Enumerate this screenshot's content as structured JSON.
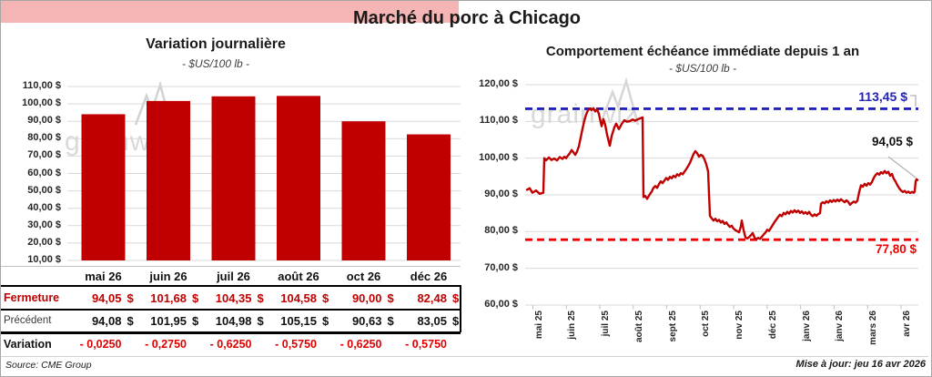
{
  "page": {
    "title": "Marché du porc à Chicago",
    "source_note": "Source: CME Group",
    "updated_note": "Mise à jour: jeu 16 avr 2026",
    "watermark": "grainwiz"
  },
  "colors": {
    "bar": "#c00000",
    "line": "#c00000",
    "high_line": "#2222b8",
    "low_line": "#ee0000",
    "close_row_bg": "#f5b5b5",
    "grid": "#d9d9d9"
  },
  "chart_data": [
    {
      "id": "daily-variation",
      "type": "bar",
      "title": "Variation journalière",
      "subtitle": "- $US/100 lb -",
      "categories": [
        "mai 26",
        "juin 26",
        "juil 26",
        "août 26",
        "oct 26",
        "déc 26"
      ],
      "values": [
        94.05,
        101.68,
        104.35,
        104.58,
        90.0,
        82.48
      ],
      "ylim": [
        10,
        110
      ],
      "ytick_step": 10,
      "ytick_labels": [
        "110,00 $",
        "100,00 $",
        "90,00 $",
        "80,00 $",
        "70,00 $",
        "60,00 $",
        "50,00 $",
        "40,00 $",
        "30,00 $",
        "20,00 $",
        "10,00 $"
      ],
      "grid": true,
      "legend": "none"
    },
    {
      "id": "front-month-one-year",
      "type": "line",
      "title": "Comportement échéance immédiate depuis 1 an",
      "subtitle": "- $US/100 lb -",
      "x_labels": [
        "mai 25",
        "juin 25",
        "juil 25",
        "août 25",
        "sept 25",
        "oct 25",
        "nov 25",
        "déc 25",
        "janv 26",
        "janv 26",
        "mars 26",
        "avr 26"
      ],
      "ylim": [
        60,
        120
      ],
      "ytick_step": 10,
      "ytick_labels": [
        "120,00 $",
        "110,00 $",
        "100,00 $",
        "90,00 $",
        "80,00 $",
        "70,00 $",
        "60,00 $"
      ],
      "grid": true,
      "legend": "none",
      "high_line": {
        "value": 113.45,
        "label": "113,45 $"
      },
      "low_line": {
        "value": 77.8,
        "label": "77,80 $"
      },
      "last_label": {
        "value": 94.05,
        "label": "94,05 $"
      },
      "points": [
        [
          2,
          91.4
        ],
        [
          5,
          91.8
        ],
        [
          8,
          90.6
        ],
        [
          12,
          91.2
        ],
        [
          16,
          90.3
        ],
        [
          20,
          90.6
        ],
        [
          21,
          100.0
        ],
        [
          23,
          99.4
        ],
        [
          26,
          100.2
        ],
        [
          29,
          99.5
        ],
        [
          32,
          99.9
        ],
        [
          35,
          99.4
        ],
        [
          38,
          100.3
        ],
        [
          41,
          99.8
        ],
        [
          43,
          100.4
        ],
        [
          45,
          100.0
        ],
        [
          47,
          100.7
        ],
        [
          49,
          101.3
        ],
        [
          51,
          102.2
        ],
        [
          53,
          101.6
        ],
        [
          55,
          100.9
        ],
        [
          57,
          101.8
        ],
        [
          59,
          103.2
        ],
        [
          61,
          105.6
        ],
        [
          63,
          108.0
        ],
        [
          65,
          110.2
        ],
        [
          67,
          111.9
        ],
        [
          69,
          113.0
        ],
        [
          71,
          113.5
        ],
        [
          73,
          113.1
        ],
        [
          75,
          113.6
        ],
        [
          77,
          112.7
        ],
        [
          79,
          113.3
        ],
        [
          81,
          112.1
        ],
        [
          82,
          110.9
        ],
        [
          84,
          108.7
        ],
        [
          86,
          110.6
        ],
        [
          88,
          109.0
        ],
        [
          90,
          106.4
        ],
        [
          92,
          104.3
        ],
        [
          93,
          103.4
        ],
        [
          95,
          106.0
        ],
        [
          98,
          108.4
        ],
        [
          100,
          109.4
        ],
        [
          103,
          107.9
        ],
        [
          106,
          109.3
        ],
        [
          109,
          110.3
        ],
        [
          112,
          109.9
        ],
        [
          115,
          110.1
        ],
        [
          118,
          110.5
        ],
        [
          121,
          110.2
        ],
        [
          124,
          110.6
        ],
        [
          127,
          110.9
        ],
        [
          129,
          111.1
        ],
        [
          130,
          89.4
        ],
        [
          132,
          89.7
        ],
        [
          134,
          88.9
        ],
        [
          136,
          89.8
        ],
        [
          139,
          90.9
        ],
        [
          141,
          91.9
        ],
        [
          143,
          92.4
        ],
        [
          145,
          91.9
        ],
        [
          147,
          92.9
        ],
        [
          149,
          93.7
        ],
        [
          151,
          93.2
        ],
        [
          153,
          93.9
        ],
        [
          155,
          94.6
        ],
        [
          157,
          94.1
        ],
        [
          159,
          94.9
        ],
        [
          161,
          94.5
        ],
        [
          163,
          95.2
        ],
        [
          165,
          94.8
        ],
        [
          167,
          95.6
        ],
        [
          169,
          95.2
        ],
        [
          171,
          95.9
        ],
        [
          173,
          95.6
        ],
        [
          175,
          96.3
        ],
        [
          177,
          97.0
        ],
        [
          179,
          97.8
        ],
        [
          181,
          98.7
        ],
        [
          183,
          99.9
        ],
        [
          185,
          101.1
        ],
        [
          187,
          101.9
        ],
        [
          189,
          101.3
        ],
        [
          191,
          100.4
        ],
        [
          193,
          100.9
        ],
        [
          195,
          100.6
        ],
        [
          197,
          99.7
        ],
        [
          199,
          98.3
        ],
        [
          201,
          96.4
        ],
        [
          203,
          84.3
        ],
        [
          205,
          83.6
        ],
        [
          207,
          83.0
        ],
        [
          209,
          83.5
        ],
        [
          211,
          82.8
        ],
        [
          213,
          83.2
        ],
        [
          215,
          82.5
        ],
        [
          217,
          82.9
        ],
        [
          219,
          82.1
        ],
        [
          221,
          82.5
        ],
        [
          223,
          81.8
        ],
        [
          225,
          81.3
        ],
        [
          227,
          81.6
        ],
        [
          229,
          80.8
        ],
        [
          231,
          80.4
        ],
        [
          233,
          80.1
        ],
        [
          235,
          79.8
        ],
        [
          237,
          81.4
        ],
        [
          238,
          83.0
        ],
        [
          240,
          80.4
        ],
        [
          242,
          78.5
        ],
        [
          244,
          78.1
        ],
        [
          246,
          78.5
        ],
        [
          248,
          79.0
        ],
        [
          250,
          79.6
        ],
        [
          252,
          78.4
        ],
        [
          254,
          77.9
        ],
        [
          256,
          78.3
        ],
        [
          258,
          78.0
        ],
        [
          260,
          78.6
        ],
        [
          262,
          79.2
        ],
        [
          264,
          79.7
        ],
        [
          266,
          80.5
        ],
        [
          268,
          80.2
        ],
        [
          270,
          81.0
        ],
        [
          272,
          81.8
        ],
        [
          274,
          82.6
        ],
        [
          276,
          83.3
        ],
        [
          278,
          84.0
        ],
        [
          280,
          84.6
        ],
        [
          282,
          84.2
        ],
        [
          284,
          85.1
        ],
        [
          286,
          84.7
        ],
        [
          288,
          85.4
        ],
        [
          290,
          84.9
        ],
        [
          292,
          85.6
        ],
        [
          294,
          85.2
        ],
        [
          296,
          85.8
        ],
        [
          298,
          85.3
        ],
        [
          300,
          85.7
        ],
        [
          302,
          85.1
        ],
        [
          304,
          85.5
        ],
        [
          306,
          84.9
        ],
        [
          308,
          85.3
        ],
        [
          310,
          84.8
        ],
        [
          312,
          85.4
        ],
        [
          314,
          84.6
        ],
        [
          316,
          84.2
        ],
        [
          318,
          84.7
        ],
        [
          320,
          84.3
        ],
        [
          322,
          84.8
        ],
        [
          324,
          85.0
        ],
        [
          325,
          87.6
        ],
        [
          327,
          88.0
        ],
        [
          329,
          87.7
        ],
        [
          331,
          88.3
        ],
        [
          333,
          87.9
        ],
        [
          335,
          88.5
        ],
        [
          337,
          88.1
        ],
        [
          339,
          88.6
        ],
        [
          341,
          88.2
        ],
        [
          343,
          88.7
        ],
        [
          345,
          88.3
        ],
        [
          347,
          88.8
        ],
        [
          349,
          88.4
        ],
        [
          351,
          88.0
        ],
        [
          353,
          88.5
        ],
        [
          355,
          88.1
        ],
        [
          357,
          87.3
        ],
        [
          359,
          87.8
        ],
        [
          361,
          88.2
        ],
        [
          363,
          87.9
        ],
        [
          365,
          88.4
        ],
        [
          367,
          90.8
        ],
        [
          369,
          92.6
        ],
        [
          371,
          92.2
        ],
        [
          373,
          93.0
        ],
        [
          375,
          92.5
        ],
        [
          377,
          93.2
        ],
        [
          379,
          92.8
        ],
        [
          381,
          93.5
        ],
        [
          383,
          94.6
        ],
        [
          385,
          95.4
        ],
        [
          387,
          95.9
        ],
        [
          389,
          95.5
        ],
        [
          391,
          96.2
        ],
        [
          393,
          95.8
        ],
        [
          395,
          96.5
        ],
        [
          397,
          95.9
        ],
        [
          399,
          96.3
        ],
        [
          401,
          95.2
        ],
        [
          403,
          95.7
        ],
        [
          405,
          94.4
        ],
        [
          407,
          93.6
        ],
        [
          409,
          92.6
        ],
        [
          411,
          91.8
        ],
        [
          413,
          91.2
        ],
        [
          415,
          90.8
        ],
        [
          417,
          91.1
        ],
        [
          419,
          90.6
        ],
        [
          421,
          90.9
        ],
        [
          423,
          90.5
        ],
        [
          425,
          90.8
        ],
        [
          427,
          90.6
        ],
        [
          428,
          90.9
        ],
        [
          429,
          93.6
        ],
        [
          430,
          94.3
        ],
        [
          431,
          94.05
        ]
      ]
    }
  ],
  "table": {
    "columns": [
      "mai 26",
      "juin 26",
      "juil 26",
      "août 26",
      "oct 26",
      "déc 26"
    ],
    "rows": [
      {
        "label": "Fermeture",
        "values": [
          "94,05",
          "101,68",
          "104,35",
          "104,58",
          "90,00",
          "82,48"
        ],
        "currency": "$",
        "style": "close"
      },
      {
        "label": "Précédent",
        "values": [
          "94,08",
          "101,95",
          "104,98",
          "105,15",
          "90,63",
          "83,05"
        ],
        "currency": "$",
        "style": "previous"
      },
      {
        "label": "Variation",
        "values": [
          "- 0,0250",
          "- 0,2750",
          "- 0,6250",
          "- 0,5750",
          "- 0,6250",
          "- 0,5750"
        ],
        "currency": "",
        "style": "variation"
      }
    ]
  }
}
